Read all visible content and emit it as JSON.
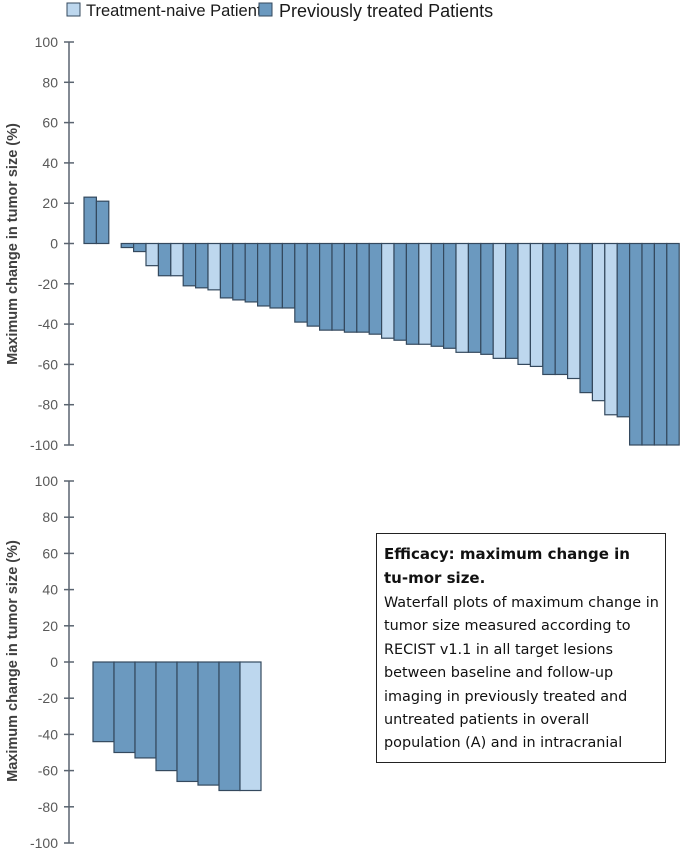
{
  "legend": {
    "items": [
      {
        "label": "Treatment-naive Patients",
        "color": "#bdd7ee"
      },
      {
        "label": "Previously treated Patients",
        "color": "#6b99bf"
      }
    ]
  },
  "colors": {
    "treatment_naive": "#bdd7ee",
    "previously_treated": "#6b99bf",
    "bar_stroke": "#34495e",
    "axis": "#5a6470"
  },
  "caption": {
    "title": "Efficacy: maximum change in tu-mor size.",
    "body": "Waterfall plots of maximum change in tumor size measured according to RECIST v1.1 in all target lesions between baseline and follow-up imaging in  previously treated and untreated patients in overall population (A) and in intracranial"
  },
  "chart_data": [
    {
      "type": "bar",
      "title": "",
      "panel": "overall population",
      "xlabel": "",
      "ylabel": "Maximum change in tumor size (%)",
      "ylim": [
        -100,
        100
      ],
      "yticks": [
        100,
        80,
        60,
        40,
        20,
        0,
        -20,
        -40,
        -60,
        -80,
        -100
      ],
      "grid": false,
      "legend_position": "top",
      "gap_after_index": 1,
      "values": [
        23,
        21,
        -2,
        -4,
        -11,
        -16,
        -16,
        -21,
        -22,
        -23,
        -27,
        -28,
        -29,
        -31,
        -32,
        -32,
        -39,
        -41,
        -43,
        -43,
        -44,
        -44,
        -45,
        -47,
        -48,
        -50,
        -50,
        -51,
        -52,
        -54,
        -54,
        -55,
        -57,
        -57,
        -60,
        -61,
        -65,
        -65,
        -67,
        -74,
        -78,
        -85,
        -86,
        -100,
        -100,
        -100,
        -100
      ],
      "groups": [
        "previously treated",
        "previously treated",
        "previously treated",
        "previously treated",
        "treatment-naive",
        "previously treated",
        "treatment-naive",
        "previously treated",
        "previously treated",
        "treatment-naive",
        "previously treated",
        "previously treated",
        "previously treated",
        "previously treated",
        "previously treated",
        "previously treated",
        "previously treated",
        "previously treated",
        "previously treated",
        "previously treated",
        "previously treated",
        "previously treated",
        "previously treated",
        "treatment-naive",
        "previously treated",
        "previously treated",
        "treatment-naive",
        "previously treated",
        "previously treated",
        "treatment-naive",
        "previously treated",
        "previously treated",
        "treatment-naive",
        "previously treated",
        "treatment-naive",
        "treatment-naive",
        "previously treated",
        "previously treated",
        "treatment-naive",
        "previously treated",
        "treatment-naive",
        "treatment-naive",
        "previously treated",
        "previously treated",
        "previously treated",
        "previously treated",
        "previously treated"
      ]
    },
    {
      "type": "bar",
      "title": "",
      "panel": "intracranial",
      "xlabel": "",
      "ylabel": "Maximum change in tumor size (%)",
      "ylim": [
        -100,
        100
      ],
      "yticks": [
        100,
        80,
        60,
        40,
        20,
        0,
        -20,
        -40,
        -60,
        -80,
        -100
      ],
      "grid": false,
      "values": [
        -44,
        -50,
        -53,
        -60,
        -66,
        -68,
        -71,
        -71
      ],
      "groups": [
        "previously treated",
        "previously treated",
        "previously treated",
        "previously treated",
        "previously treated",
        "previously treated",
        "previously treated",
        "treatment-naive"
      ]
    }
  ]
}
